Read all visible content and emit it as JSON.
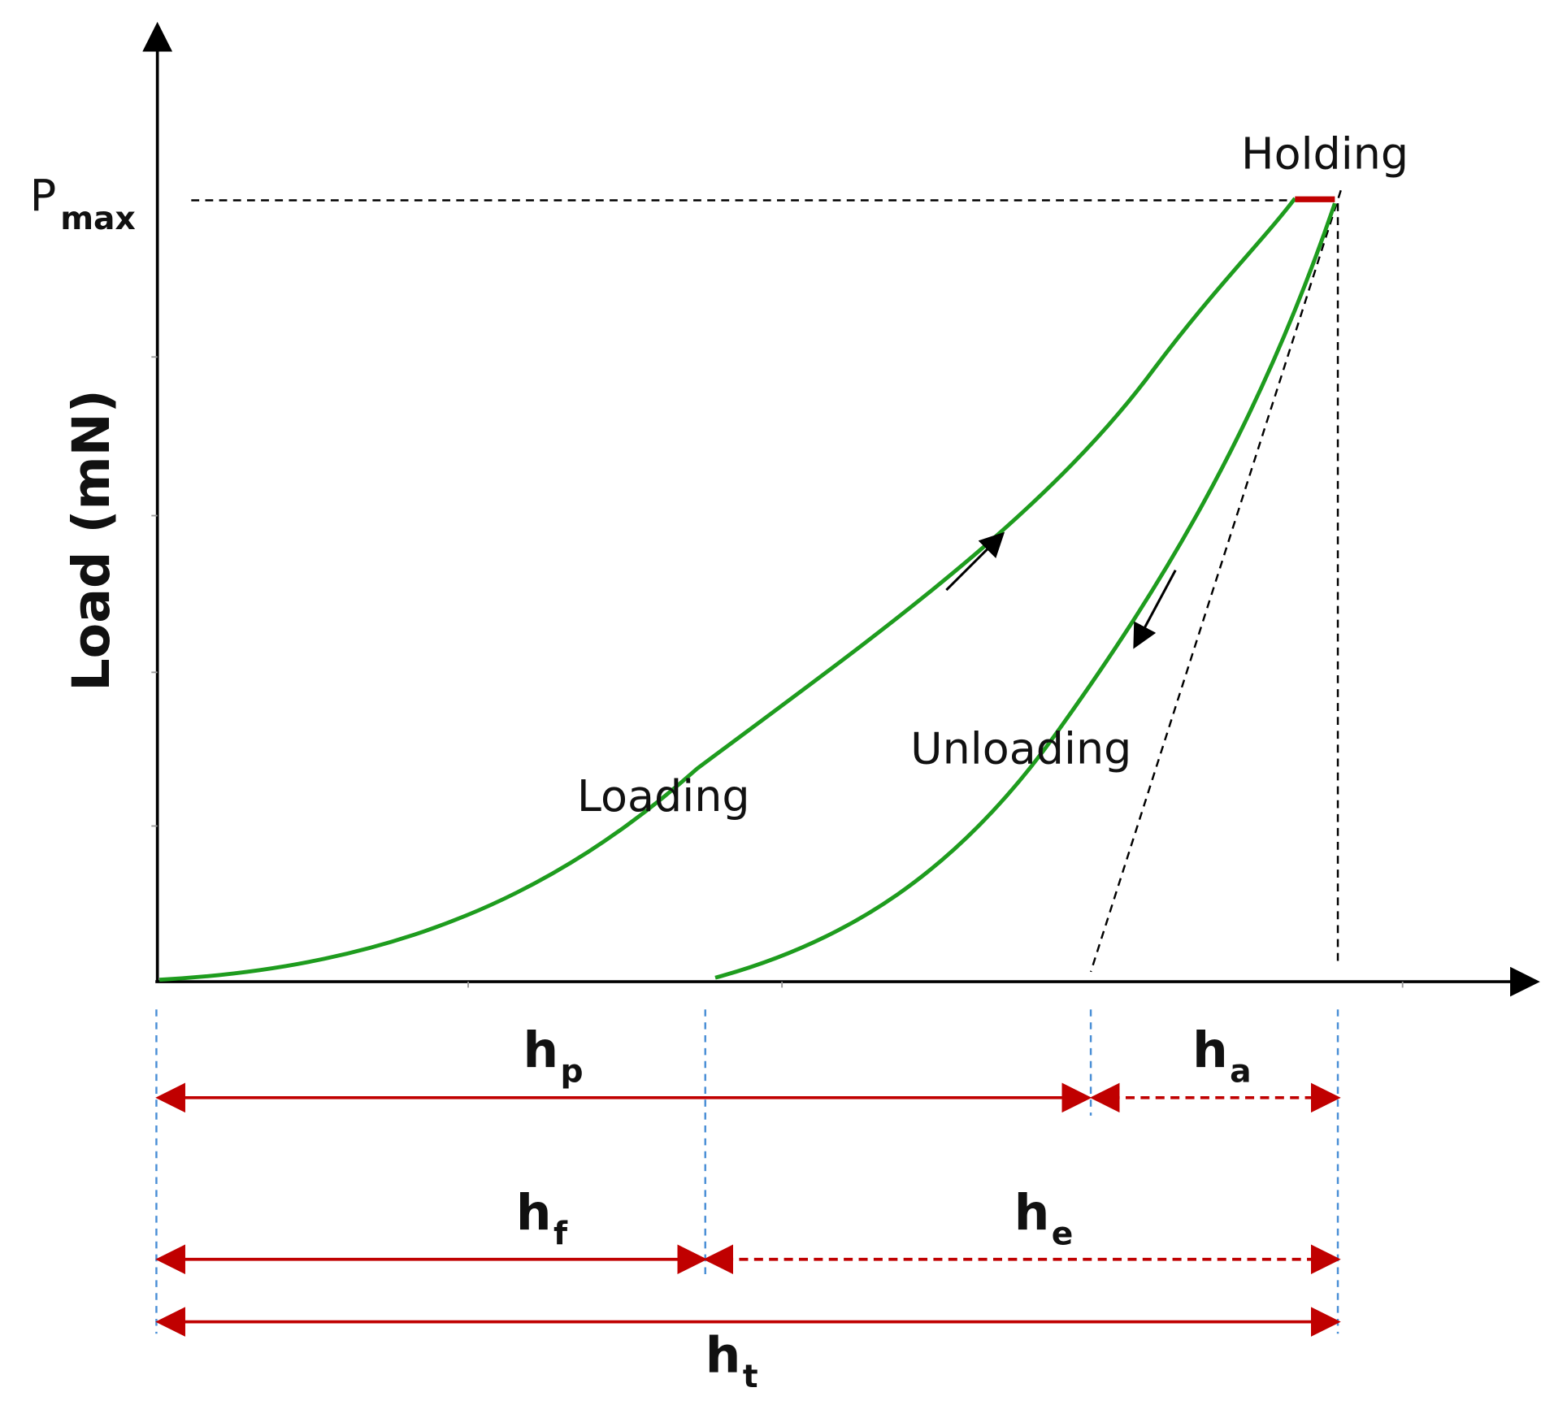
{
  "y_axis_label": "Load (mN)",
  "pmax": {
    "base": "P",
    "sub": "max"
  },
  "curves": {
    "holding": "Holding",
    "loading": "Loading",
    "unloading": "Unloading"
  },
  "depths": {
    "hp": {
      "base": "h",
      "sub": "p"
    },
    "ha": {
      "base": "h",
      "sub": "a"
    },
    "hf": {
      "base": "h",
      "sub": "f"
    },
    "he": {
      "base": "h",
      "sub": "e"
    },
    "ht": {
      "base": "h",
      "sub": "t"
    }
  }
}
